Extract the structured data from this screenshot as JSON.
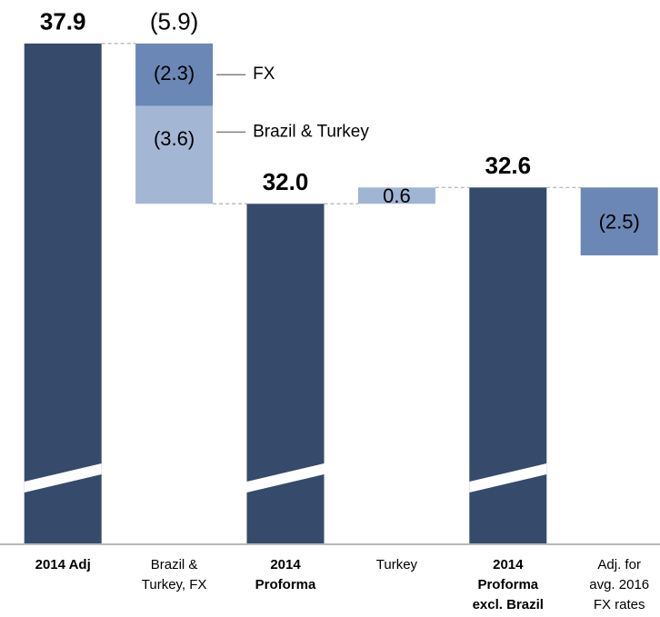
{
  "chart_data": {
    "type": "waterfall",
    "categories": [
      [
        "2014 Adj"
      ],
      [
        "Brazil &",
        "Turkey, FX"
      ],
      [
        "2014",
        "Proforma"
      ],
      [
        "Turkey"
      ],
      [
        "2014",
        "Proforma",
        "excl. Brazil"
      ],
      [
        "Adj. for",
        "avg. 2016",
        "FX rates"
      ]
    ],
    "values": [
      37.9,
      -5.9,
      32.0,
      0.6,
      32.6,
      -2.5
    ],
    "value_labels": [
      "37.9",
      "(5.9)",
      "32.0",
      "0.6",
      "32.6",
      "(2.5)"
    ],
    "is_total": [
      true,
      false,
      true,
      false,
      true,
      false
    ],
    "colors": [
      "#364a6b",
      "#6b87b5",
      "#364a6b",
      "#a0b4d4",
      "#364a6b",
      "#6b87b5"
    ],
    "segments": {
      "1": [
        {
          "name": "FX",
          "value": -2.3,
          "label": "(2.3)",
          "color": "#6b87b5"
        },
        {
          "name": "Brazil & Turkey",
          "value": -3.6,
          "label": "(3.6)",
          "color": "#a3b6d4"
        }
      ]
    },
    "ylim": [
      19.5,
      39.4
    ],
    "axis_break": true
  }
}
